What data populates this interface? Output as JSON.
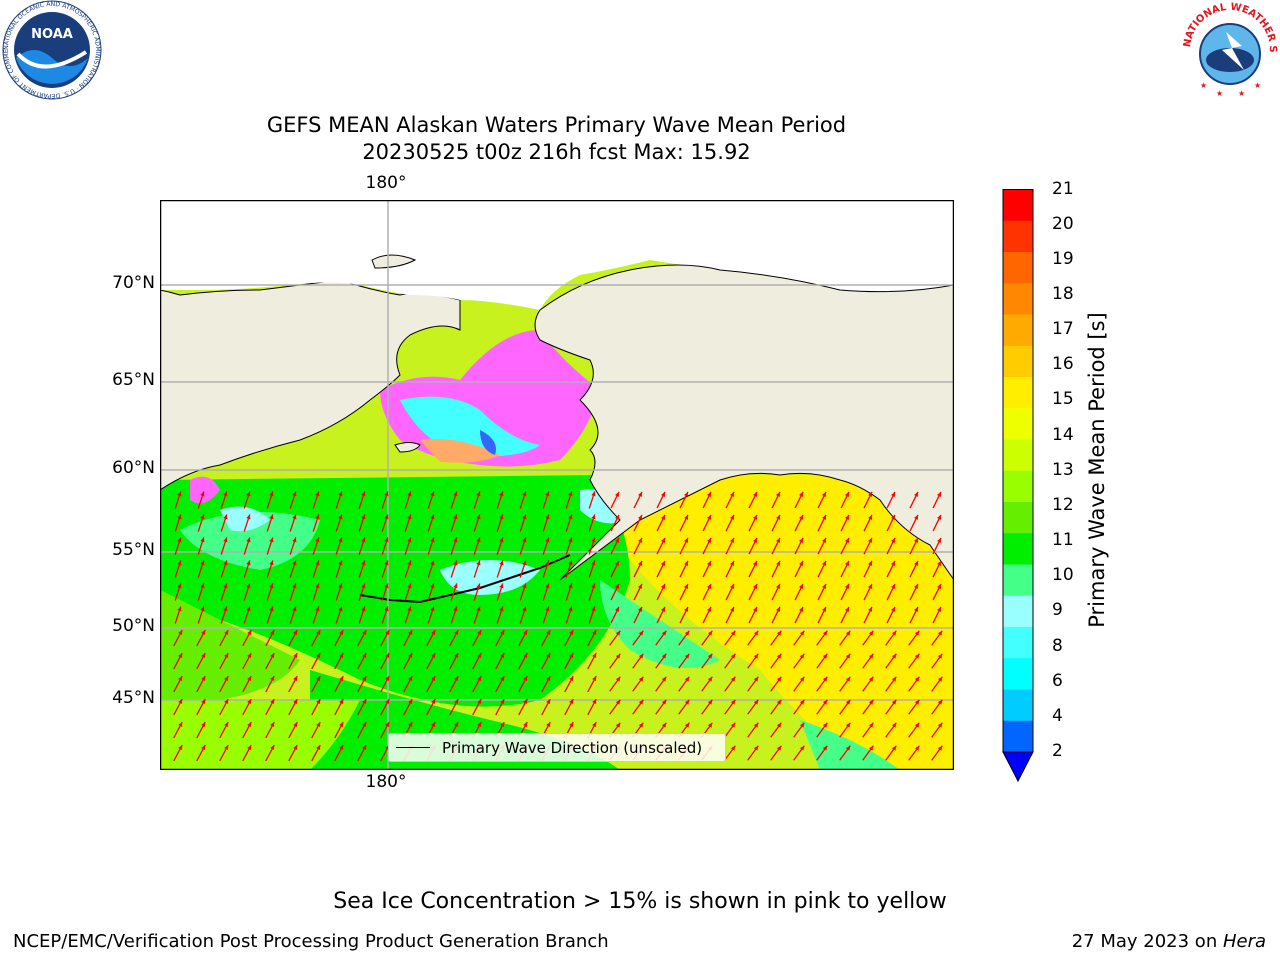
{
  "title": {
    "line1": "GEFS MEAN Alaskan Waters Primary Wave Mean Period",
    "line2": "20230525 t00z 216h fcst   Max: 15.92"
  },
  "map": {
    "lat_labels": [
      "70°N",
      "65°N",
      "60°N",
      "55°N",
      "50°N",
      "45°N"
    ],
    "lon_label_top": "180°",
    "lon_label_bottom": "180°",
    "legend_label": "Primary Wave Direction (unscaled)",
    "colors": {
      "land": "#efedde",
      "sea_yellow": "#ffee00",
      "sea_lightgreen": "#c8f21e",
      "sea_green": "#00ee00",
      "sea_cyan": "#99ffff",
      "ice_pink": "#ff66ff",
      "arrow": "#ff0000",
      "grid": "#b0b0b0"
    }
  },
  "colorbar": {
    "title": "Primary Wave Mean Period [s]",
    "ticks": [
      "21",
      "20",
      "19",
      "18",
      "17",
      "16",
      "15",
      "14",
      "13",
      "12",
      "11",
      "10",
      "9",
      "8",
      "6",
      "4",
      "2"
    ],
    "colors": [
      "#ff0000",
      "#ff3300",
      "#ff6600",
      "#ff8800",
      "#ffaa00",
      "#ffcc00",
      "#ffee00",
      "#eeff00",
      "#ccff00",
      "#99ff00",
      "#66ee00",
      "#00ee00",
      "#44ff88",
      "#99ffff",
      "#44ffff",
      "#00ffff",
      "#00ccff",
      "#0066ff"
    ],
    "extend_color": "#0000ff"
  },
  "footer": {
    "caption": "Sea Ice Concentration > 15% is shown in pink to yellow",
    "left": "NCEP/EMC/Verification Post Processing Product Generation Branch",
    "right_prefix": "27 May 2023 on ",
    "right_machine": "Hera"
  },
  "logos": {
    "noaa_text": "NOAA",
    "noaa_ring_text": "NATIONAL OCEANIC AND ATMOSPHERIC ADMINISTRATION · U.S. DEPARTMENT OF COMMERCE",
    "nws_ring_text": "NATIONAL WEATHER SERVICE"
  }
}
